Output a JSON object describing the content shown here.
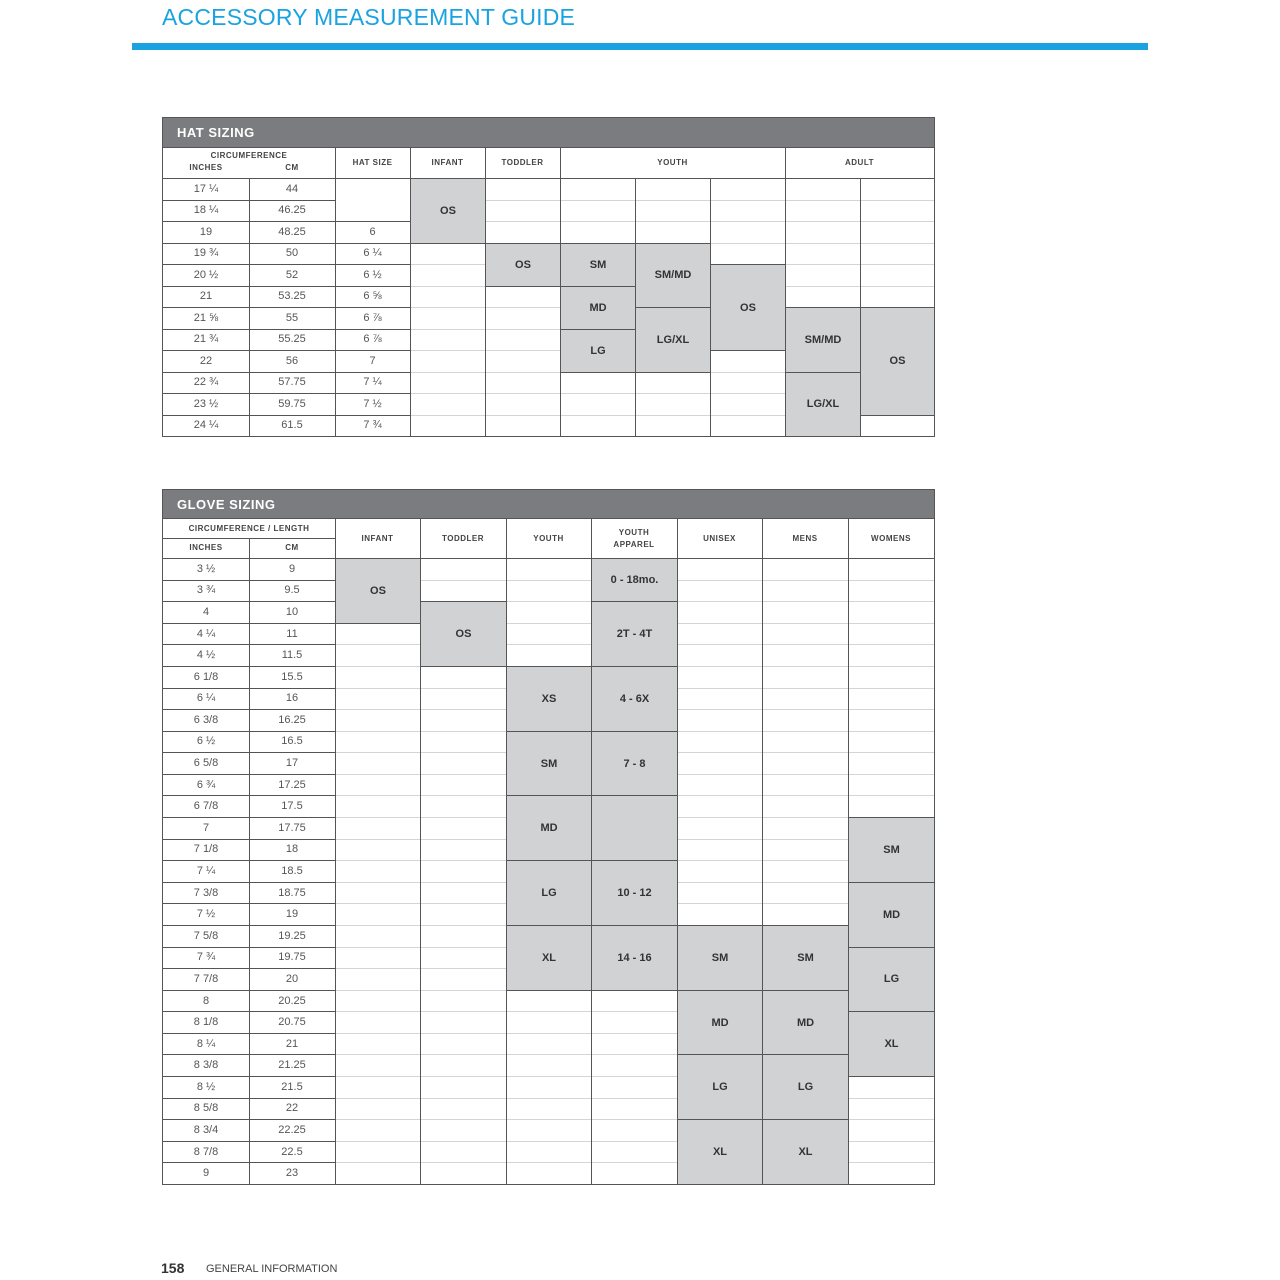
{
  "page_title": "ACCESSORY MEASUREMENT GUIDE",
  "accent_color": "#1aa3e0",
  "block_color": "#d1d2d4",
  "footer": {
    "page_number": "158",
    "section": "GENERAL INFORMATION"
  },
  "hat": {
    "title": "HAT SIZING",
    "headers": {
      "circumference": "CIRCUMFERENCE",
      "inches": "INCHES",
      "cm": "CM",
      "hat_size": "HAT SIZE",
      "infant": "INFANT",
      "toddler": "TODDLER",
      "youth": "YOUTH",
      "adult": "ADULT"
    },
    "rows": [
      {
        "inches": "17 ¼",
        "cm": "44",
        "hat_size": ""
      },
      {
        "inches": "18 ¼",
        "cm": "46.25",
        "hat_size": ""
      },
      {
        "inches": "19",
        "cm": "48.25",
        "hat_size": "6"
      },
      {
        "inches": "19 ¾",
        "cm": "50",
        "hat_size": "6 ¼"
      },
      {
        "inches": "20 ½",
        "cm": "52",
        "hat_size": "6 ½"
      },
      {
        "inches": "21",
        "cm": "53.25",
        "hat_size": "6 ⅝"
      },
      {
        "inches": "21 ⅝",
        "cm": "55",
        "hat_size": "6 ⅞"
      },
      {
        "inches": "21 ¾",
        "cm": "55.25",
        "hat_size": "6 ⅞"
      },
      {
        "inches": "22",
        "cm": "56",
        "hat_size": "7"
      },
      {
        "inches": "22 ¾",
        "cm": "57.75",
        "hat_size": "7 ¼"
      },
      {
        "inches": "23 ½",
        "cm": "59.75",
        "hat_size": "7 ½"
      },
      {
        "inches": "24 ¼",
        "cm": "61.5",
        "hat_size": "7 ¾"
      }
    ],
    "blocks": [
      {
        "column": "infant",
        "col": 0,
        "from_row": 0,
        "to_row": 3,
        "label": "OS"
      },
      {
        "column": "toddler",
        "col": 1,
        "from_row": 3,
        "to_row": 5,
        "label": "OS"
      },
      {
        "column": "youth",
        "col": 2,
        "from_row": 3,
        "to_row": 5,
        "label": "SM"
      },
      {
        "column": "youth",
        "col": 2,
        "from_row": 5,
        "to_row": 7,
        "label": "MD"
      },
      {
        "column": "youth",
        "col": 2,
        "from_row": 7,
        "to_row": 9,
        "label": "LG"
      },
      {
        "column": "youth",
        "col": 3,
        "from_row": 3,
        "to_row": 6,
        "label": "SM/MD"
      },
      {
        "column": "youth",
        "col": 3,
        "from_row": 6,
        "to_row": 9,
        "label": "LG/XL"
      },
      {
        "column": "youth",
        "col": 4,
        "from_row": 4,
        "to_row": 8,
        "label": "OS"
      },
      {
        "column": "adult",
        "col": 5,
        "from_row": 6,
        "to_row": 9,
        "label": "SM/MD"
      },
      {
        "column": "adult",
        "col": 5,
        "from_row": 9,
        "to_row": 12,
        "label": "LG/XL"
      },
      {
        "column": "adult",
        "col": 6,
        "from_row": 6,
        "to_row": 11,
        "label": "OS"
      }
    ]
  },
  "glove": {
    "title": "GLOVE SIZING",
    "headers": {
      "circumference": "CIRCUMFERENCE / LENGTH",
      "inches": "INCHES",
      "cm": "CM",
      "columns": [
        "INFANT",
        "TODDLER",
        "YOUTH",
        "YOUTH APPAREL",
        "UNISEX",
        "MENS",
        "WOMENS"
      ]
    },
    "rows": [
      {
        "inches": "3 ½",
        "cm": "9"
      },
      {
        "inches": "3 ¾",
        "cm": "9.5"
      },
      {
        "inches": "4",
        "cm": "10"
      },
      {
        "inches": "4 ¼",
        "cm": "11"
      },
      {
        "inches": "4 ½",
        "cm": "11.5"
      },
      {
        "inches": "6 1/8",
        "cm": "15.5"
      },
      {
        "inches": "6 ¼",
        "cm": "16"
      },
      {
        "inches": "6 3/8",
        "cm": "16.25"
      },
      {
        "inches": "6 ½",
        "cm": "16.5"
      },
      {
        "inches": "6 5/8",
        "cm": "17"
      },
      {
        "inches": "6 ¾",
        "cm": "17.25"
      },
      {
        "inches": "6 7/8",
        "cm": "17.5"
      },
      {
        "inches": "7",
        "cm": "17.75"
      },
      {
        "inches": "7 1/8",
        "cm": "18"
      },
      {
        "inches": "7 ¼",
        "cm": "18.5"
      },
      {
        "inches": "7 3/8",
        "cm": "18.75"
      },
      {
        "inches": "7 ½",
        "cm": "19"
      },
      {
        "inches": "7 5/8",
        "cm": "19.25"
      },
      {
        "inches": "7 ¾",
        "cm": "19.75"
      },
      {
        "inches": "7 7/8",
        "cm": "20"
      },
      {
        "inches": "8",
        "cm": "20.25"
      },
      {
        "inches": "8 1/8",
        "cm": "20.75"
      },
      {
        "inches": "8 ¼",
        "cm": "21"
      },
      {
        "inches": "8 3/8",
        "cm": "21.25"
      },
      {
        "inches": "8 ½",
        "cm": "21.5"
      },
      {
        "inches": "8 5/8",
        "cm": "22"
      },
      {
        "inches": "8 3/4",
        "cm": "22.25"
      },
      {
        "inches": "8 7/8",
        "cm": "22.5"
      },
      {
        "inches": "9",
        "cm": "23"
      }
    ],
    "blocks": [
      {
        "column": "infant",
        "col": 0,
        "from_row": 0,
        "to_row": 3,
        "label": "OS"
      },
      {
        "column": "toddler",
        "col": 1,
        "from_row": 2,
        "to_row": 5,
        "label": "OS"
      },
      {
        "column": "youth",
        "col": 2,
        "from_row": 5,
        "to_row": 8,
        "label": "XS"
      },
      {
        "column": "youth",
        "col": 2,
        "from_row": 8,
        "to_row": 11,
        "label": "SM"
      },
      {
        "column": "youth",
        "col": 2,
        "from_row": 11,
        "to_row": 14,
        "label": "MD"
      },
      {
        "column": "youth",
        "col": 2,
        "from_row": 14,
        "to_row": 17,
        "label": "LG"
      },
      {
        "column": "youth",
        "col": 2,
        "from_row": 17,
        "to_row": 20,
        "label": "XL"
      },
      {
        "column": "youth_apparel",
        "col": 3,
        "from_row": 0,
        "to_row": 2,
        "label": "0 - 18mo."
      },
      {
        "column": "youth_apparel",
        "col": 3,
        "from_row": 2,
        "to_row": 5,
        "label": "2T - 4T"
      },
      {
        "column": "youth_apparel",
        "col": 3,
        "from_row": 5,
        "to_row": 8,
        "label": "4 - 6X"
      },
      {
        "column": "youth_apparel",
        "col": 3,
        "from_row": 8,
        "to_row": 11,
        "label": "7 - 8"
      },
      {
        "column": "youth_apparel",
        "col": 3,
        "from_row": 11,
        "to_row": 14,
        "label": ""
      },
      {
        "column": "youth_apparel",
        "col": 3,
        "from_row": 14,
        "to_row": 17,
        "label": "10 - 12"
      },
      {
        "column": "youth_apparel",
        "col": 3,
        "from_row": 17,
        "to_row": 20,
        "label": "14 - 16"
      },
      {
        "column": "unisex",
        "col": 4,
        "from_row": 17,
        "to_row": 20,
        "label": "SM"
      },
      {
        "column": "unisex",
        "col": 4,
        "from_row": 20,
        "to_row": 23,
        "label": "MD"
      },
      {
        "column": "unisex",
        "col": 4,
        "from_row": 23,
        "to_row": 26,
        "label": "LG"
      },
      {
        "column": "unisex",
        "col": 4,
        "from_row": 26,
        "to_row": 29,
        "label": "XL"
      },
      {
        "column": "mens",
        "col": 5,
        "from_row": 17,
        "to_row": 20,
        "label": "SM"
      },
      {
        "column": "mens",
        "col": 5,
        "from_row": 20,
        "to_row": 23,
        "label": "MD"
      },
      {
        "column": "mens",
        "col": 5,
        "from_row": 23,
        "to_row": 26,
        "label": "LG"
      },
      {
        "column": "mens",
        "col": 5,
        "from_row": 26,
        "to_row": 29,
        "label": "XL"
      },
      {
        "column": "womens",
        "col": 6,
        "from_row": 12,
        "to_row": 15,
        "label": "SM"
      },
      {
        "column": "womens",
        "col": 6,
        "from_row": 15,
        "to_row": 18,
        "label": "MD"
      },
      {
        "column": "womens",
        "col": 6,
        "from_row": 18,
        "to_row": 21,
        "label": "LG"
      },
      {
        "column": "womens",
        "col": 6,
        "from_row": 21,
        "to_row": 24,
        "label": "XL"
      }
    ]
  }
}
